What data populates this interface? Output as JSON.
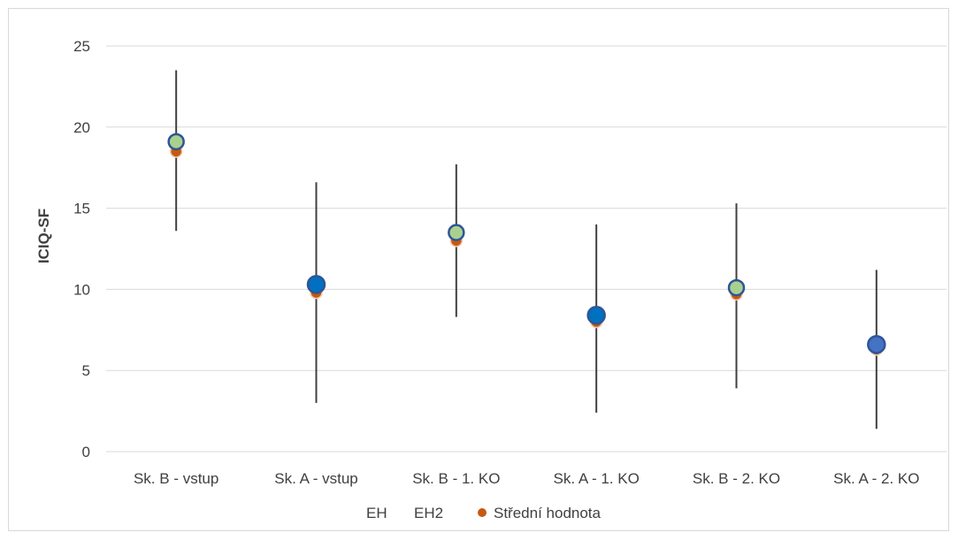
{
  "chart_data": {
    "type": "scatter",
    "ylabel": "ICIQ-SF",
    "xlabel": "",
    "ylim": [
      0,
      25
    ],
    "yticks": [
      0,
      5,
      10,
      15,
      20,
      25
    ],
    "grid": true,
    "legend_position": "bottom",
    "categories": [
      "Sk. B - vstup",
      "Sk. A - vstup",
      "Sk. B - 1. KO",
      "Sk. A - 1. KO",
      "Sk. B - 2. KO",
      "Sk. A - 2. KO"
    ],
    "series": [
      {
        "name": "EH",
        "type": "error_bar",
        "color": "#404040",
        "low": [
          13.6,
          3.0,
          8.3,
          2.4,
          3.9,
          1.4
        ],
        "high": [
          23.5,
          16.6,
          17.7,
          14.0,
          15.3,
          11.2
        ]
      },
      {
        "name": "EH2",
        "type": "marker",
        "values": [
          19.1,
          10.3,
          13.5,
          8.4,
          10.1,
          6.6
        ],
        "colors": [
          "#a9d18e",
          "#0070c0",
          "#a9d18e",
          "#0070c0",
          "#a9d18e",
          "#4472c4"
        ]
      },
      {
        "name": "Střední hodnota",
        "type": "marker",
        "color": "#c55a11",
        "values": [
          18.5,
          9.8,
          13.0,
          8.0,
          9.7,
          6.3
        ]
      }
    ]
  }
}
